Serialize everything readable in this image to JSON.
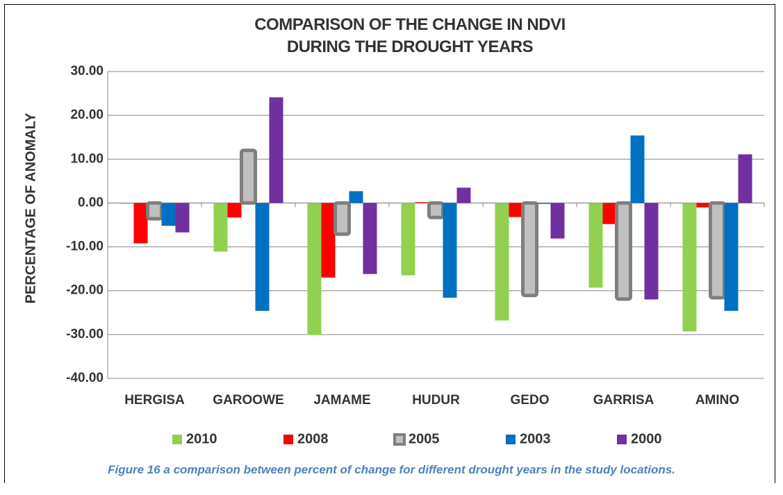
{
  "chart_data": {
    "type": "bar",
    "title": "COMPARISON OF  THE CHANGE IN NDVI DURING THE DROUGHT YEARS",
    "y_label": "PERCENTAGE OF ANOMALY",
    "categories": [
      "HERGISA",
      "GAROOWE",
      "JAMAME",
      "HUDUR",
      "GEDO",
      "GARRISA",
      "AMINO"
    ],
    "series": [
      {
        "name": "2010",
        "color": "#92d050",
        "values": [
          -0.2,
          -11.1,
          -30.1,
          -16.5,
          -26.8,
          -19.3,
          -29.3
        ]
      },
      {
        "name": "2008",
        "color": "#ff0000",
        "values": [
          -9.2,
          -3.3,
          -17.0,
          0.2,
          -3.2,
          -4.8,
          -1.0
        ]
      },
      {
        "name": "2005",
        "color": "#c0c0c0",
        "border": "#7f7f7f",
        "values": [
          -3.6,
          12.0,
          -7.1,
          -3.3,
          -21.1,
          -21.9,
          -21.6
        ]
      },
      {
        "name": "2003",
        "color": "#0070c0",
        "values": [
          -5.2,
          -24.6,
          2.7,
          -21.6,
          -0.2,
          15.4,
          -24.6
        ]
      },
      {
        "name": "2000",
        "color": "#7030a0",
        "values": [
          -6.7,
          24.1,
          -16.2,
          3.5,
          -8.1,
          -22.0,
          11.1
        ]
      }
    ],
    "ylim": [
      -40,
      30
    ],
    "yticks": [
      {
        "value": -40,
        "label": "-40.00"
      },
      {
        "value": -30,
        "label": "-30.00"
      },
      {
        "value": -20,
        "label": "-20.00"
      },
      {
        "value": -10,
        "label": "-10.00"
      },
      {
        "value": 0,
        "label": "0.00"
      },
      {
        "value": 10,
        "label": "10.00"
      },
      {
        "value": 20,
        "label": "20.00"
      },
      {
        "value": 30,
        "label": "30.00"
      }
    ],
    "grid": true,
    "legend": "bottom"
  },
  "caption": "Figure 16 a comparison between percent of change for different drought years in the study locations."
}
